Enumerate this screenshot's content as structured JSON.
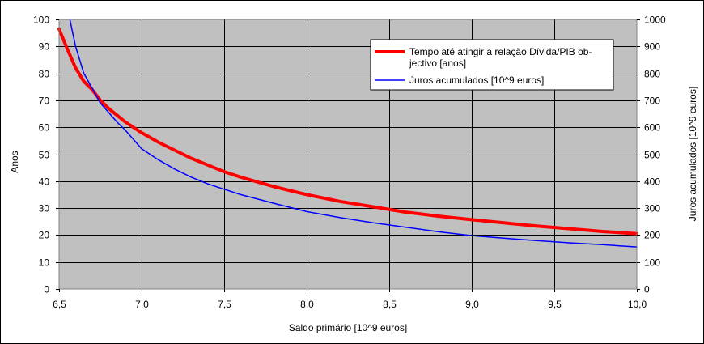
{
  "chart_data": {
    "type": "line",
    "title": "",
    "xlabel": "Saldo primário [10^9 euros]",
    "ylabel": "Anos",
    "y2label": "Juros acumulados [10^9 euros]",
    "xlim": [
      6.5,
      10.0
    ],
    "ylim": [
      0,
      100
    ],
    "y2lim": [
      0,
      1000
    ],
    "xticks": [
      "6,5",
      "7,0",
      "7,5",
      "8,0",
      "8,5",
      "9,0",
      "9,5",
      "10,0"
    ],
    "yticks": [
      "0",
      "10",
      "20",
      "30",
      "40",
      "50",
      "60",
      "70",
      "80",
      "90",
      "100"
    ],
    "y2ticks": [
      "0",
      "100",
      "200",
      "300",
      "400",
      "500",
      "600",
      "700",
      "800",
      "900",
      "1000"
    ],
    "grid": true,
    "legend_position": "top-right",
    "series": [
      {
        "name": "Tempo até atingir a relação Dívida/PIB objectivo [anos]",
        "legend_lines": [
          "Tempo até atingir a relação Dívida/PIB ob-",
          "jectivo [anos]"
        ],
        "axis": "left",
        "color": "#ff0000",
        "x": [
          6.5,
          6.55,
          6.6,
          6.65,
          6.7,
          6.75,
          6.8,
          6.85,
          6.9,
          7.0,
          7.1,
          7.2,
          7.3,
          7.4,
          7.5,
          7.6,
          7.8,
          8.0,
          8.2,
          8.4,
          8.6,
          8.8,
          9.0,
          9.2,
          9.4,
          9.6,
          9.8,
          10.0
        ],
        "values": [
          96.5,
          89,
          82,
          77,
          74,
          70,
          67,
          64.5,
          62,
          58,
          54.5,
          51.5,
          48.5,
          46,
          43.5,
          41.5,
          38,
          35,
          32.5,
          30.5,
          28.5,
          27,
          25.7,
          24.5,
          23.3,
          22.3,
          21.3,
          20.5
        ]
      },
      {
        "name": "Juros acumulados [10^9 euros]",
        "legend_lines": [
          "Juros acumulados [10^9 euros]"
        ],
        "axis": "right",
        "color": "#0000ff",
        "x": [
          6.565,
          6.6,
          6.65,
          6.7,
          6.75,
          6.8,
          6.85,
          6.9,
          7.0,
          7.1,
          7.2,
          7.3,
          7.4,
          7.5,
          7.6,
          7.8,
          8.0,
          8.2,
          8.4,
          8.6,
          8.8,
          9.0,
          9.2,
          9.4,
          9.6,
          9.8,
          10.0
        ],
        "values": [
          1000,
          900,
          800,
          745,
          690,
          655,
          620,
          590,
          520,
          480,
          445,
          415,
          390,
          370,
          350,
          318,
          287,
          265,
          246,
          229,
          212,
          198,
          188,
          179,
          171,
          164,
          156
        ]
      }
    ]
  }
}
